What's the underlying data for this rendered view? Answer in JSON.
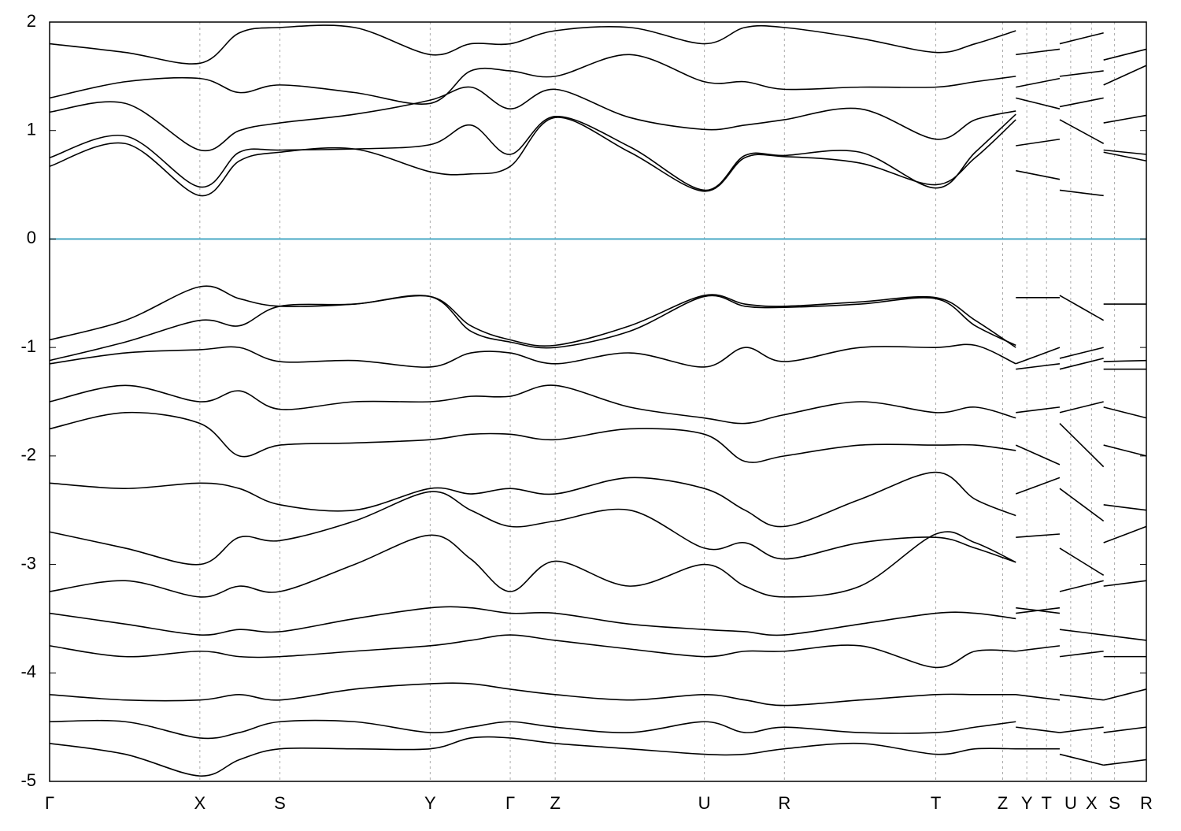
{
  "chart_data": {
    "type": "line",
    "x": [
      0,
      0.69,
      1.37,
      1.73,
      2.1,
      2.78,
      3.47,
      3.84,
      4.2,
      4.61,
      5.29,
      5.97,
      6.34,
      6.7,
      7.39,
      8.08,
      8.44,
      8.81,
      8.81,
      8.81,
      9.21,
      9.21,
      9.21,
      9.61,
      9.61,
      9.61,
      10
    ],
    "xlim": [
      0,
      10
    ],
    "xticks": [
      {
        "value": 0,
        "label": "Γ"
      },
      {
        "value": 1.37,
        "label": "X"
      },
      {
        "value": 2.1,
        "label": "S"
      },
      {
        "value": 3.47,
        "label": "Y"
      },
      {
        "value": 4.2,
        "label": "Γ"
      },
      {
        "value": 4.61,
        "label": "Z"
      },
      {
        "value": 5.97,
        "label": "U"
      },
      {
        "value": 6.7,
        "label": "R"
      },
      {
        "value": 8.08,
        "label": "T"
      },
      {
        "value": 8.69,
        "label": "Z"
      },
      {
        "value": 8.91,
        "label": "Y"
      },
      {
        "value": 9.09,
        "label": "T"
      },
      {
        "value": 9.31,
        "label": "U"
      },
      {
        "value": 9.5,
        "label": "X"
      },
      {
        "value": 9.71,
        "label": "S"
      },
      {
        "value": 10,
        "label": "R"
      }
    ],
    "ylim": [
      -5,
      2
    ],
    "yticks": [
      2,
      1,
      0,
      -1,
      -2,
      -3,
      -4,
      -5
    ],
    "grid": true,
    "fermi_level": 0,
    "fermi_color": "#3ea3c1",
    "line_color": "#000000",
    "series": [
      {
        "values": [
          1.8,
          1.72,
          1.62,
          1.9,
          1.95,
          1.95,
          1.7,
          1.8,
          1.8,
          1.92,
          1.95,
          1.8,
          1.95,
          1.95,
          1.85,
          1.72,
          1.8,
          1.92,
          null,
          1.7,
          1.75,
          null,
          1.8,
          1.9,
          null,
          1.65,
          1.75
        ]
      },
      {
        "values": [
          1.3,
          1.45,
          1.48,
          1.35,
          1.42,
          1.35,
          1.25,
          1.55,
          1.55,
          1.5,
          1.7,
          1.45,
          1.45,
          1.38,
          1.4,
          1.4,
          1.45,
          1.5,
          null,
          1.4,
          1.48,
          null,
          1.5,
          1.55,
          null,
          1.42,
          1.6
        ]
      },
      {
        "values": [
          1.17,
          1.25,
          0.82,
          1.0,
          1.07,
          1.15,
          1.28,
          1.4,
          1.2,
          1.38,
          1.12,
          1.01,
          1.05,
          1.1,
          1.2,
          0.92,
          1.1,
          1.18,
          null,
          1.3,
          1.2,
          null,
          1.22,
          1.3,
          null,
          1.07,
          1.14
        ]
      },
      {
        "values": [
          0.75,
          0.95,
          0.48,
          0.8,
          0.82,
          0.83,
          0.87,
          1.05,
          0.78,
          1.13,
          0.85,
          0.45,
          0.77,
          0.77,
          0.8,
          0.47,
          0.8,
          1.15,
          null,
          0.86,
          0.92,
          null,
          1.1,
          0.88,
          null,
          0.82,
          0.78
        ]
      },
      {
        "values": [
          0.67,
          0.88,
          0.4,
          0.72,
          0.8,
          0.83,
          0.62,
          0.6,
          0.67,
          1.12,
          0.8,
          0.44,
          0.75,
          0.76,
          0.7,
          0.5,
          0.75,
          1.1,
          null,
          0.63,
          0.55,
          null,
          0.45,
          0.4,
          null,
          0.8,
          0.72
        ]
      },
      {
        "values": [
          -0.93,
          -0.75,
          -0.44,
          -0.55,
          -0.62,
          -0.6,
          -0.53,
          -0.8,
          -0.93,
          -0.98,
          -0.8,
          -0.52,
          -0.6,
          -0.62,
          -0.58,
          -0.54,
          -0.75,
          -1.0,
          null,
          -0.54,
          -0.54,
          null,
          -0.52,
          -0.75,
          null,
          -0.6,
          -0.6
        ]
      },
      {
        "values": [
          -1.12,
          -0.95,
          -0.75,
          -0.8,
          -0.62,
          -0.6,
          -0.53,
          -0.85,
          -0.95,
          -1.0,
          -0.85,
          -0.53,
          -0.62,
          -0.63,
          -0.6,
          -0.55,
          -0.8,
          -0.98,
          null,
          -1.15,
          -1.0,
          null,
          -1.1,
          -1.0,
          null,
          -1.13,
          -1.12
        ]
      },
      {
        "values": [
          -1.15,
          -1.05,
          -1.02,
          -1.0,
          -1.13,
          -1.12,
          -1.18,
          -1.05,
          -1.05,
          -1.15,
          -1.05,
          -1.18,
          -1.0,
          -1.13,
          -1.0,
          -1.0,
          -0.98,
          -1.15,
          null,
          -1.2,
          -1.15,
          null,
          -1.2,
          -1.1,
          null,
          -1.2,
          -1.2
        ]
      },
      {
        "values": [
          -1.5,
          -1.35,
          -1.5,
          -1.4,
          -1.57,
          -1.5,
          -1.5,
          -1.45,
          -1.45,
          -1.35,
          -1.55,
          -1.65,
          -1.7,
          -1.62,
          -1.5,
          -1.6,
          -1.55,
          -1.65,
          null,
          -1.6,
          -1.55,
          null,
          -1.6,
          -1.5,
          null,
          -1.55,
          -1.65
        ]
      },
      {
        "values": [
          -1.75,
          -1.6,
          -1.7,
          -2.0,
          -1.9,
          -1.88,
          -1.85,
          -1.8,
          -1.8,
          -1.85,
          -1.75,
          -1.8,
          -2.05,
          -2.0,
          -1.9,
          -1.9,
          -1.9,
          -1.95,
          null,
          -1.9,
          -2.08,
          null,
          -1.7,
          -2.1,
          null,
          -1.9,
          -2.0
        ]
      },
      {
        "values": [
          -2.25,
          -2.3,
          -2.25,
          -2.3,
          -2.45,
          -2.5,
          -2.3,
          -2.35,
          -2.3,
          -2.35,
          -2.2,
          -2.3,
          -2.5,
          -2.65,
          -2.4,
          -2.15,
          -2.4,
          -2.55,
          null,
          -2.35,
          -2.2,
          null,
          -2.3,
          -2.6,
          null,
          -2.45,
          -2.5
        ]
      },
      {
        "values": [
          -2.7,
          -2.85,
          -3.0,
          -2.75,
          -2.78,
          -2.6,
          -2.33,
          -2.5,
          -2.65,
          -2.6,
          -2.5,
          -2.85,
          -2.8,
          -2.95,
          -2.8,
          -2.75,
          -2.85,
          -2.98,
          null,
          -2.75,
          -2.72,
          null,
          -2.85,
          -3.1,
          null,
          -2.8,
          -2.65
        ]
      },
      {
        "values": [
          -3.25,
          -3.15,
          -3.3,
          -3.2,
          -3.25,
          -3.0,
          -2.73,
          -2.95,
          -3.25,
          -2.97,
          -3.2,
          -3.0,
          -3.2,
          -3.3,
          -3.2,
          -2.72,
          -2.8,
          -2.98,
          null,
          -3.45,
          -3.4,
          null,
          -3.25,
          -3.15,
          null,
          -3.2,
          -3.15
        ]
      },
      {
        "values": [
          -3.45,
          -3.55,
          -3.65,
          -3.6,
          -3.62,
          -3.5,
          -3.4,
          -3.4,
          -3.45,
          -3.45,
          -3.55,
          -3.6,
          -3.62,
          -3.65,
          -3.55,
          -3.45,
          -3.45,
          -3.5,
          null,
          -3.4,
          -3.45,
          null,
          -3.6,
          -3.65,
          null,
          -3.65,
          -3.7
        ]
      },
      {
        "values": [
          -3.75,
          -3.85,
          -3.8,
          -3.85,
          -3.85,
          -3.8,
          -3.75,
          -3.7,
          -3.65,
          -3.7,
          -3.78,
          -3.85,
          -3.8,
          -3.8,
          -3.75,
          -3.95,
          -3.8,
          -3.8,
          null,
          -3.8,
          -3.75,
          null,
          -3.85,
          -3.8,
          null,
          -3.85,
          -3.85
        ]
      },
      {
        "values": [
          -4.2,
          -4.25,
          -4.25,
          -4.2,
          -4.25,
          -4.15,
          -4.1,
          -4.1,
          -4.15,
          -4.2,
          -4.25,
          -4.2,
          -4.25,
          -4.3,
          -4.25,
          -4.2,
          -4.2,
          -4.2,
          null,
          -4.2,
          -4.25,
          null,
          -4.2,
          -4.25,
          null,
          -4.25,
          -4.15
        ]
      },
      {
        "values": [
          -4.45,
          -4.45,
          -4.6,
          -4.55,
          -4.45,
          -4.45,
          -4.55,
          -4.5,
          -4.45,
          -4.5,
          -4.55,
          -4.45,
          -4.55,
          -4.5,
          -4.55,
          -4.55,
          -4.5,
          -4.45,
          null,
          -4.5,
          -4.55,
          null,
          -4.55,
          -4.5,
          null,
          -4.55,
          -4.5
        ]
      },
      {
        "values": [
          -4.65,
          -4.75,
          -4.95,
          -4.8,
          -4.7,
          -4.7,
          -4.7,
          -4.6,
          -4.6,
          -4.65,
          -4.7,
          -4.75,
          -4.75,
          -4.7,
          -4.65,
          -4.75,
          -4.7,
          -4.7,
          null,
          -4.7,
          -4.7,
          null,
          -4.75,
          -4.85,
          null,
          -4.85,
          -4.8
        ]
      }
    ]
  }
}
